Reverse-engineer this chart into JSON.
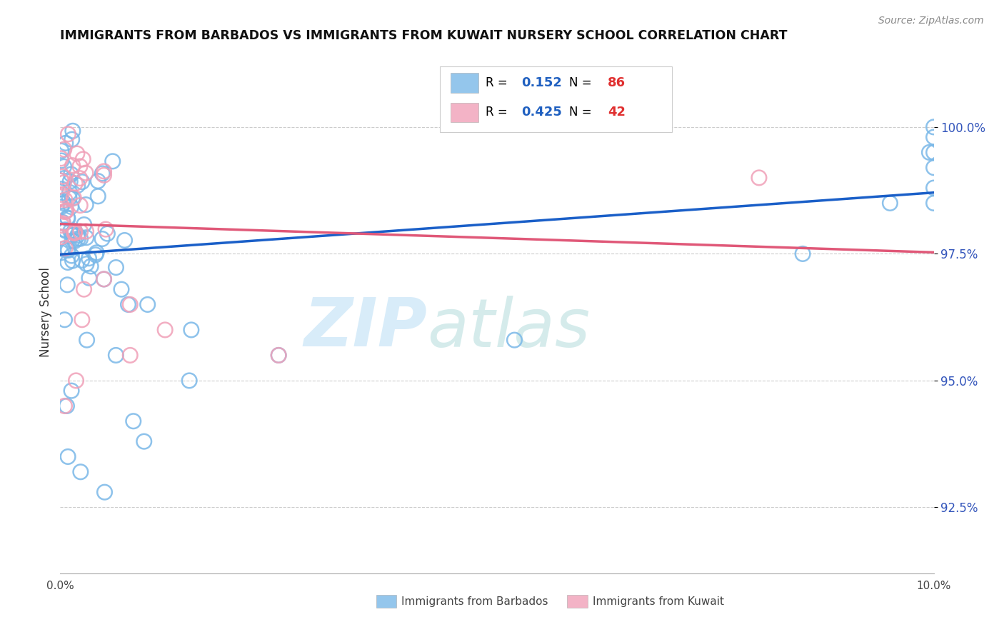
{
  "title": "IMMIGRANTS FROM BARBADOS VS IMMIGRANTS FROM KUWAIT NURSERY SCHOOL CORRELATION CHART",
  "source": "Source: ZipAtlas.com",
  "ylabel": "Nursery School",
  "xlim": [
    0.0,
    10.0
  ],
  "ylim": [
    91.2,
    101.5
  ],
  "yticks": [
    92.5,
    95.0,
    97.5,
    100.0
  ],
  "ytick_labels": [
    "92.5%",
    "95.0%",
    "97.5%",
    "100.0%"
  ],
  "barbados_color": "#7ab8e8",
  "kuwait_color": "#f0a0b8",
  "trend_blue": "#1a5fc8",
  "trend_pink": "#e05878",
  "R_color": "#2060c0",
  "N_color": "#e03030",
  "barbados_R": "0.152",
  "barbados_N": "86",
  "kuwait_R": "0.425",
  "kuwait_N": "42",
  "legend_label_barbados": "Immigrants from Barbados",
  "legend_label_kuwait": "Immigrants from Kuwait",
  "watermark_zip": "ZIP",
  "watermark_atlas": "atlas"
}
